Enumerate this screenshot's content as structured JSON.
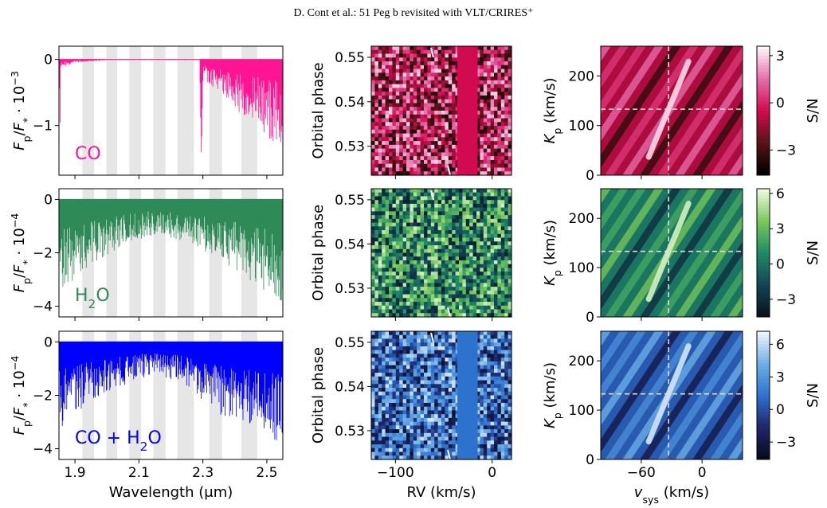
{
  "page": {
    "header": "D. Cont  et al.: 51 Peg b revisited with VLT/CRIRES⁺"
  },
  "chart_data": [
    {
      "type": "line",
      "panel": "spectrum",
      "row": 0,
      "color": "#ff1493",
      "label": "CO",
      "label_sub": "",
      "label_tail": "",
      "ylabel_exp": "−3",
      "yticks": [
        "0",
        "−1"
      ],
      "yrange": [
        -1.75,
        0.2
      ],
      "xrange": [
        1.85,
        2.55
      ],
      "xticks": [
        "1.9",
        "2.1",
        "2.3",
        "2.5"
      ],
      "xlabel": "",
      "shaded_bands_um": [
        [
          1.923,
          1.96
        ],
        [
          1.998,
          2.032
        ],
        [
          2.07,
          2.107
        ],
        [
          2.145,
          2.183
        ],
        [
          2.22,
          2.272
        ],
        [
          2.32,
          2.36
        ],
        [
          2.42,
          2.47
        ]
      ],
      "spectrum_envelope": [
        [
          1.855,
          -0.12
        ],
        [
          1.9,
          -0.05
        ],
        [
          2.0,
          -0.01
        ],
        [
          2.29,
          -0.01
        ],
        [
          2.295,
          -1.5
        ],
        [
          2.3,
          -0.3
        ],
        [
          2.55,
          -1.4
        ]
      ]
    },
    {
      "type": "line",
      "panel": "spectrum",
      "row": 1,
      "color": "#2e8b57",
      "label": "H",
      "label_sub": "2",
      "label_tail": "O",
      "ylabel_exp": "−4",
      "yticks": [
        "0",
        "−2",
        "−4"
      ],
      "yrange": [
        -4.4,
        0.4
      ],
      "xrange": [
        1.85,
        2.55
      ],
      "xticks": [
        "1.9",
        "2.1",
        "2.3",
        "2.5"
      ],
      "xlabel": "",
      "shaded_bands_um": [
        [
          1.923,
          1.96
        ],
        [
          1.998,
          2.032
        ],
        [
          2.07,
          2.107
        ],
        [
          2.145,
          2.183
        ],
        [
          2.22,
          2.272
        ],
        [
          2.32,
          2.36
        ],
        [
          2.42,
          2.47
        ]
      ],
      "spectrum_envelope": [
        [
          1.85,
          -3.2
        ],
        [
          1.95,
          -2.2
        ],
        [
          2.05,
          -1.6
        ],
        [
          2.15,
          -1.2
        ],
        [
          2.25,
          -1.5
        ],
        [
          2.35,
          -2.0
        ],
        [
          2.45,
          -2.8
        ],
        [
          2.55,
          -3.5
        ]
      ]
    },
    {
      "type": "line",
      "panel": "spectrum",
      "row": 2,
      "color": "#0000ff",
      "label": "CO + H",
      "label_sub": "2",
      "label_tail": "O",
      "ylabel_exp": "−4",
      "yticks": [
        "0",
        "−2",
        "−4"
      ],
      "yrange": [
        -4.4,
        0.4
      ],
      "xrange": [
        1.85,
        2.55
      ],
      "xticks": [
        "1.9",
        "2.1",
        "2.3",
        "2.5"
      ],
      "xlabel": "Wavelength (μm)",
      "shaded_bands_um": [
        [
          1.923,
          1.96
        ],
        [
          1.998,
          2.032
        ],
        [
          2.07,
          2.107
        ],
        [
          2.145,
          2.183
        ],
        [
          2.22,
          2.272
        ],
        [
          2.32,
          2.36
        ],
        [
          2.42,
          2.47
        ]
      ],
      "spectrum_envelope": [
        [
          1.85,
          -3.0
        ],
        [
          1.95,
          -2.0
        ],
        [
          2.05,
          -1.5
        ],
        [
          2.15,
          -1.1
        ],
        [
          2.25,
          -1.5
        ],
        [
          2.35,
          -2.5
        ],
        [
          2.45,
          -2.8
        ],
        [
          2.55,
          -3.5
        ]
      ]
    },
    {
      "type": "heatmap",
      "panel": "ccf",
      "row": 0,
      "palette": "rubi",
      "masked_rv": [
        -36,
        -15
      ],
      "ylabel": "Orbital phase",
      "yticks": [
        "0.55",
        "0.54",
        "0.53"
      ],
      "yrange": [
        0.5235,
        0.5525
      ],
      "xrange": [
        -125,
        20
      ],
      "xticks": [
        "−100",
        "0"
      ],
      "xlabel": ""
    },
    {
      "type": "heatmap",
      "panel": "ccf",
      "row": 1,
      "palette": "green",
      "masked_rv": null,
      "ylabel": "Orbital phase",
      "yticks": [
        "0.55",
        "0.54",
        "0.53"
      ],
      "yrange": [
        0.5235,
        0.5525
      ],
      "xrange": [
        -125,
        20
      ],
      "xticks": [
        "−100",
        "0"
      ],
      "xlabel": ""
    },
    {
      "type": "heatmap",
      "panel": "ccf",
      "row": 2,
      "palette": "blue",
      "masked_rv": [
        -36,
        -15
      ],
      "ylabel": "Orbital phase",
      "yticks": [
        "0.55",
        "0.54",
        "0.53"
      ],
      "yrange": [
        0.5235,
        0.5525
      ],
      "xrange": [
        -125,
        20
      ],
      "xticks": [
        "−100",
        "0"
      ],
      "xlabel": "RV (km/s)"
    },
    {
      "type": "heatmap",
      "panel": "kpvsys",
      "row": 0,
      "palette": "rubi",
      "ylabel": "K",
      "ylabel_sub": "p",
      "ylabel_tail": " (km/s)",
      "yticks": [
        "200",
        "100",
        "0"
      ],
      "yrange": [
        0,
        260
      ],
      "xrange": [
        -100,
        40
      ],
      "xticks": [
        "−60",
        "0"
      ],
      "xlabel": "",
      "vsys_line": -33,
      "kp_line": 133,
      "peak": [
        -33,
        133
      ],
      "colorbar_label": "S/N",
      "colorbar_range": [
        -4.6,
        3.6
      ],
      "colorbar_ticks": [
        "3",
        "0",
        "−3"
      ]
    },
    {
      "type": "heatmap",
      "panel": "kpvsys",
      "row": 1,
      "palette": "green",
      "ylabel": "K",
      "ylabel_sub": "p",
      "ylabel_tail": " (km/s)",
      "yticks": [
        "200",
        "100",
        "0"
      ],
      "yrange": [
        0,
        260
      ],
      "xrange": [
        -100,
        40
      ],
      "xticks": [
        "−60",
        "0"
      ],
      "xlabel": "",
      "vsys_line": -33,
      "kp_line": 133,
      "peak": [
        -33,
        133
      ],
      "colorbar_label": "S/N",
      "colorbar_range": [
        -4.5,
        6.4
      ],
      "colorbar_ticks": [
        "6",
        "3",
        "0",
        "−3"
      ]
    },
    {
      "type": "heatmap",
      "panel": "kpvsys",
      "row": 2,
      "palette": "blue",
      "ylabel": "K",
      "ylabel_sub": "p",
      "ylabel_tail": " (km/s)",
      "yticks": [
        "200",
        "100",
        "0"
      ],
      "yrange": [
        0,
        260
      ],
      "xrange": [
        -100,
        40
      ],
      "xticks": [
        "−60",
        "0"
      ],
      "xlabel_main": "v",
      "xlabel_sub": "sys",
      "xlabel_tail": " (km/s)",
      "vsys_line": -33,
      "kp_line": 133,
      "peak": [
        -33,
        133
      ],
      "colorbar_label": "S/N",
      "colorbar_range": [
        -4.6,
        7.2
      ],
      "colorbar_ticks": [
        "6",
        "3",
        "0",
        "−3"
      ]
    }
  ]
}
